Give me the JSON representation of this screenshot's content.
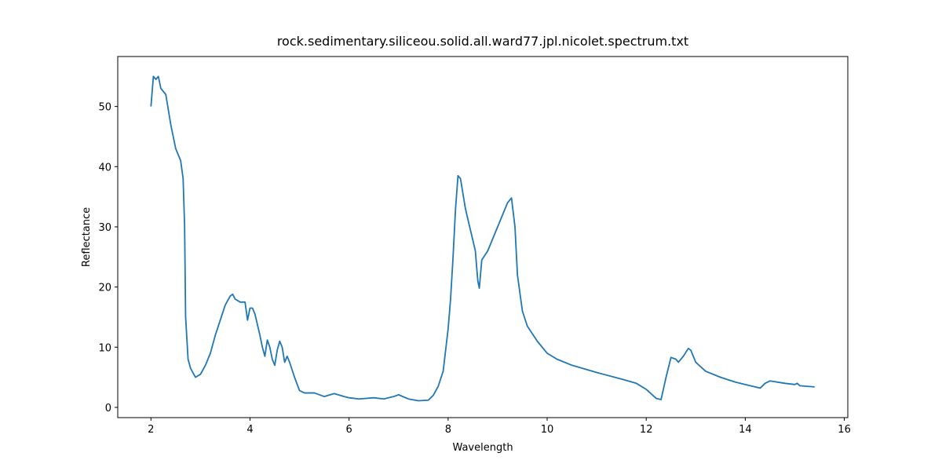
{
  "chart_data": {
    "type": "line",
    "title": "rock.sedimentary.siliceou.solid.all.ward77.jpl.nicolet.spectrum.txt",
    "x_label": "Wavelength",
    "y_label": "Reflectance",
    "xlim": [
      1.33,
      16.07
    ],
    "ylim": [
      -1.7,
      58.3
    ],
    "xticks": [
      2,
      4,
      6,
      8,
      10,
      12,
      14,
      16
    ],
    "yticks": [
      0,
      10,
      20,
      30,
      40,
      50
    ],
    "series": [
      {
        "color": "#1f77b4",
        "x": [
          2.0,
          2.02,
          2.05,
          2.1,
          2.15,
          2.2,
          2.3,
          2.4,
          2.5,
          2.6,
          2.65,
          2.68,
          2.7,
          2.75,
          2.8,
          2.9,
          3.0,
          3.1,
          3.2,
          3.3,
          3.4,
          3.5,
          3.6,
          3.65,
          3.7,
          3.8,
          3.9,
          3.95,
          4.0,
          4.05,
          4.1,
          4.2,
          4.25,
          4.3,
          4.35,
          4.4,
          4.45,
          4.5,
          4.55,
          4.6,
          4.65,
          4.7,
          4.75,
          4.8,
          4.9,
          5.0,
          5.1,
          5.3,
          5.5,
          5.7,
          5.9,
          6.0,
          6.2,
          6.5,
          6.7,
          6.9,
          7.0,
          7.2,
          7.4,
          7.6,
          7.7,
          7.8,
          7.9,
          8.0,
          8.05,
          8.1,
          8.15,
          8.2,
          8.25,
          8.35,
          8.45,
          8.55,
          8.6,
          8.63,
          8.68,
          8.8,
          9.0,
          9.2,
          9.28,
          9.35,
          9.4,
          9.5,
          9.6,
          9.8,
          10.0,
          10.2,
          10.5,
          11.0,
          11.5,
          11.8,
          12.0,
          12.2,
          12.3,
          12.4,
          12.5,
          12.6,
          12.65,
          12.75,
          12.85,
          12.9,
          13.0,
          13.2,
          13.5,
          13.8,
          14.0,
          14.3,
          14.4,
          14.5,
          14.8,
          15.0,
          15.05,
          15.1,
          15.4
        ],
        "values": [
          50,
          52,
          55,
          54.5,
          55,
          53,
          52,
          47,
          43,
          41,
          38,
          30,
          15,
          8,
          6.5,
          5,
          5.5,
          7,
          9,
          12,
          14.5,
          17,
          18.5,
          18.8,
          18,
          17.5,
          17.5,
          14.5,
          16.5,
          16.5,
          15.5,
          12,
          10,
          8.5,
          11.2,
          10,
          8,
          7,
          9.5,
          11,
          10,
          7.5,
          8.5,
          7.5,
          5,
          2.8,
          2.4,
          2.4,
          1.8,
          2.3,
          1.8,
          1.6,
          1.4,
          1.6,
          1.4,
          1.8,
          2.1,
          1.4,
          1.1,
          1.2,
          2,
          3.5,
          6,
          13,
          18,
          25,
          33,
          38.5,
          38,
          33,
          29.5,
          26,
          21,
          19.8,
          24.5,
          26,
          30,
          34,
          34.8,
          30,
          22,
          16,
          13.5,
          11,
          9,
          8,
          7,
          5.8,
          4.7,
          4,
          3,
          1.5,
          1.3,
          5,
          8.3,
          8,
          7.5,
          8.5,
          9.8,
          9.5,
          7.5,
          6,
          5,
          4.2,
          3.8,
          3.2,
          4,
          4.4,
          4,
          3.8,
          4,
          3.6,
          3.4
        ]
      }
    ]
  }
}
